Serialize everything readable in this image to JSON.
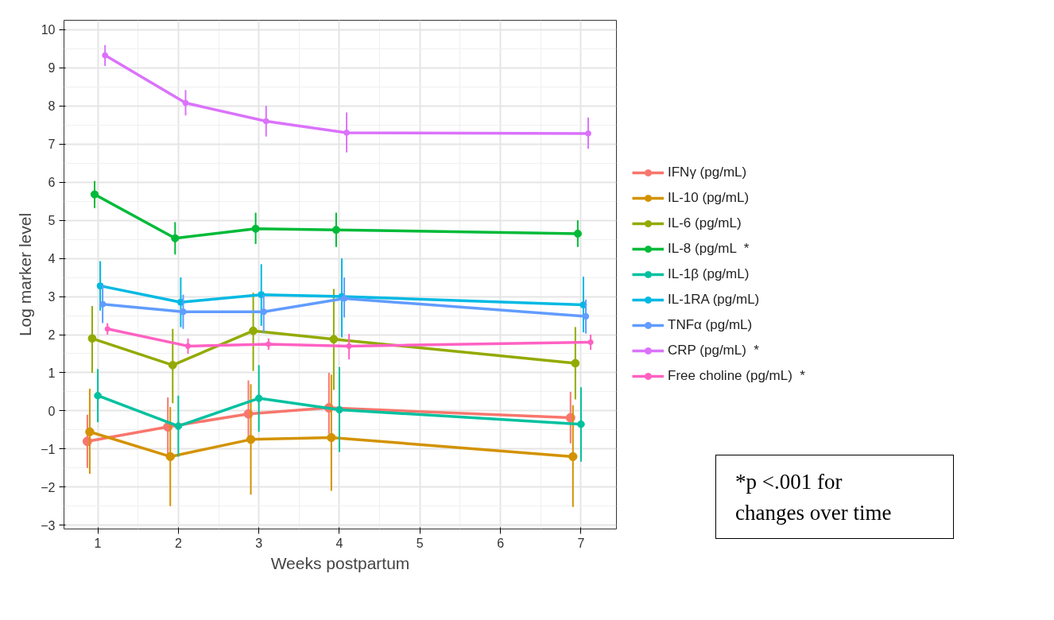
{
  "chart_data": {
    "type": "line",
    "xlabel": "Weeks postpartum",
    "ylabel": "Log marker level",
    "xlim": [
      0.58,
      7.44
    ],
    "ylim": [
      -3.1,
      10.25
    ],
    "xticks": [
      1,
      2,
      3,
      4,
      5,
      6,
      7
    ],
    "yticks": [
      -3,
      -2,
      -1,
      0,
      1,
      2,
      3,
      4,
      5,
      6,
      7,
      8,
      9,
      10
    ],
    "grid": true,
    "legend": "right",
    "marker": "circle",
    "line_style": "solid",
    "series": [
      {
        "name": "IFNγ (pg/mL)",
        "color": "#f8766d",
        "x": [
          0.87,
          1.87,
          2.87,
          3.87,
          6.87
        ],
        "values": [
          -0.8,
          -0.42,
          -0.08,
          0.08,
          -0.18
        ],
        "errors": [
          [
            -1.5,
            -0.1
          ],
          [
            -1.2,
            0.35
          ],
          [
            -0.75,
            0.8
          ],
          [
            -0.6,
            1.0
          ],
          [
            -0.85,
            0.5
          ]
        ]
      },
      {
        "name": "IL-10 (pg/mL)",
        "color": "#d39200",
        "x": [
          0.9,
          1.9,
          2.9,
          3.9,
          6.9
        ],
        "values": [
          -0.55,
          -1.2,
          -0.75,
          -0.7,
          -1.2
        ],
        "errors": [
          [
            -1.65,
            0.58
          ],
          [
            -2.5,
            0.1
          ],
          [
            -2.2,
            0.7
          ],
          [
            -2.1,
            0.95
          ],
          [
            -2.52,
            0.15
          ]
        ]
      },
      {
        "name": "IL-6 (pg/mL)",
        "color": "#93aa00",
        "x": [
          0.93,
          1.93,
          2.93,
          3.93,
          6.93
        ],
        "values": [
          1.9,
          1.2,
          2.1,
          1.88,
          1.25
        ],
        "errors": [
          [
            1.0,
            2.75
          ],
          [
            0.2,
            2.15
          ],
          [
            1.05,
            3.1
          ],
          [
            0.55,
            3.2
          ],
          [
            0.3,
            2.2
          ]
        ]
      },
      {
        "name": "IL-8 (pg/mL  *",
        "color": "#00ba38",
        "x": [
          0.96,
          1.96,
          2.96,
          3.96,
          6.96
        ],
        "values": [
          5.68,
          4.53,
          4.78,
          4.75,
          4.65
        ],
        "errors": [
          [
            5.32,
            6.03
          ],
          [
            4.1,
            4.95
          ],
          [
            4.38,
            5.2
          ],
          [
            4.3,
            5.2
          ],
          [
            4.3,
            5.0
          ]
        ]
      },
      {
        "name": "IL-1β (pg/mL)",
        "color": "#00c19f",
        "x": [
          1.0,
          2.0,
          3.0,
          4.0,
          7.0
        ],
        "values": [
          0.4,
          -0.4,
          0.33,
          0.03,
          -0.35
        ],
        "errors": [
          [
            -0.3,
            1.1
          ],
          [
            -1.2,
            0.4
          ],
          [
            -0.55,
            1.2
          ],
          [
            -1.08,
            1.15
          ],
          [
            -1.33,
            0.62
          ]
        ]
      },
      {
        "name": "IL-1RA (pg/mL)",
        "color": "#00b9e3",
        "x": [
          1.03,
          2.03,
          3.03,
          4.03,
          7.03
        ],
        "values": [
          3.28,
          2.85,
          3.05,
          3.0,
          2.78
        ],
        "errors": [
          [
            2.63,
            3.93
          ],
          [
            2.2,
            3.5
          ],
          [
            2.23,
            3.85
          ],
          [
            1.93,
            4.0
          ],
          [
            2.06,
            3.52
          ]
        ]
      },
      {
        "name": "TNFα (pg/mL)",
        "color": "#619cff",
        "x": [
          1.06,
          2.06,
          3.06,
          4.06,
          7.06
        ],
        "values": [
          2.8,
          2.6,
          2.6,
          2.95,
          2.48
        ],
        "errors": [
          [
            2.3,
            3.3
          ],
          [
            2.15,
            3.05
          ],
          [
            2.05,
            3.05
          ],
          [
            2.45,
            3.5
          ],
          [
            2.03,
            2.92
          ]
        ]
      },
      {
        "name": "CRP (pg/mL)  *",
        "color": "#db72fb",
        "x": [
          1.09,
          2.09,
          3.09,
          4.09,
          7.09
        ],
        "values": [
          9.33,
          8.08,
          7.6,
          7.3,
          7.28
        ],
        "errors": [
          [
            9.05,
            9.6
          ],
          [
            7.75,
            8.42
          ],
          [
            7.2,
            8.0
          ],
          [
            6.78,
            7.83
          ],
          [
            6.88,
            7.7
          ]
        ]
      },
      {
        "name": "Free choline (pg/mL)  *",
        "color": "#ff61c3",
        "x": [
          1.12,
          2.12,
          3.12,
          4.12,
          7.12
        ],
        "values": [
          2.15,
          1.7,
          1.75,
          1.7,
          1.8
        ],
        "errors": [
          [
            2.0,
            2.3
          ],
          [
            1.5,
            1.9
          ],
          [
            1.6,
            1.9
          ],
          [
            1.35,
            2.02
          ],
          [
            1.6,
            2.0
          ]
        ]
      }
    ],
    "annotations": [
      "*p <.001 for changes over time"
    ]
  }
}
